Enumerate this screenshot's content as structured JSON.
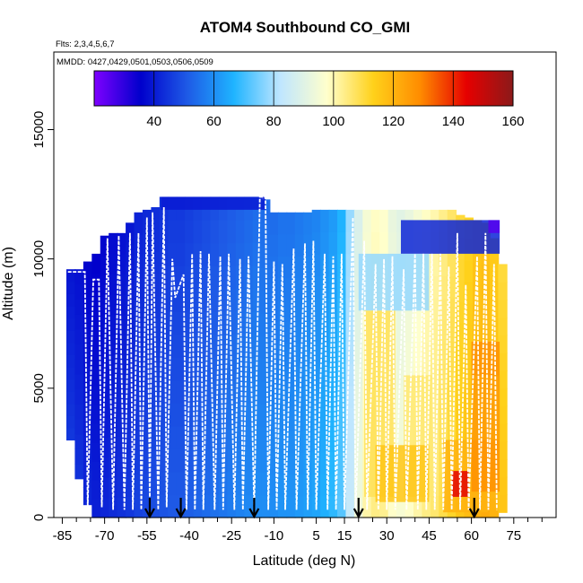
{
  "chart_data": {
    "type": "heatmap",
    "title": "ATOM4 Southbound CO_GMI",
    "subtitle_flights": "Flts: 2,3,4,5,6,7",
    "subtitle_dates": "MMDD: 0427,0429,0501,0503,0506,0509",
    "xlabel": "Latitude (deg N)",
    "ylabel": "Altitude (m)",
    "xlim": [
      -88,
      90
    ],
    "ylim": [
      0,
      18000
    ],
    "x_ticks": [
      -85,
      -70,
      -55,
      -40,
      -25,
      -10,
      5,
      15,
      30,
      45,
      60,
      75
    ],
    "x_minor_ticks": [
      -80,
      -75,
      -65,
      -60,
      -50,
      -45,
      -35,
      -30,
      -20,
      -15,
      0,
      10,
      20,
      25,
      35,
      40,
      50,
      55,
      65,
      70,
      80,
      85
    ],
    "y_ticks": [
      0,
      5000,
      10000,
      15000
    ],
    "colorbar": {
      "min": 20,
      "max": 160,
      "ticks": [
        40,
        60,
        80,
        100,
        120,
        140,
        160
      ],
      "colors": [
        "#7f00ff",
        "#0000cc",
        "#1e5ae6",
        "#1fb4ff",
        "#bfe6ff",
        "#ffffcc",
        "#ffd11a",
        "#ff8c00",
        "#e60000",
        "#8b1a1a"
      ]
    },
    "grid": false,
    "arrow_latitudes": [
      -54,
      -43,
      -17,
      20,
      61
    ],
    "curtain_columns": [
      {
        "lat": -82,
        "bottom": 3000,
        "top": 9600,
        "co": 45
      },
      {
        "lat": -79,
        "bottom": 1500,
        "top": 9600,
        "co": 44
      },
      {
        "lat": -76,
        "bottom": 500,
        "top": 9900,
        "co": 42
      },
      {
        "lat": -73,
        "bottom": 0,
        "top": 10200,
        "co": 41
      },
      {
        "lat": -70,
        "bottom": 0,
        "top": 10900,
        "co": 42
      },
      {
        "lat": -67,
        "bottom": 0,
        "top": 11000,
        "co": 43
      },
      {
        "lat": -64,
        "bottom": 0,
        "top": 11000,
        "co": 44
      },
      {
        "lat": -61,
        "bottom": 0,
        "top": 11400,
        "co": 45
      },
      {
        "lat": -58,
        "bottom": 0,
        "top": 11800,
        "co": 47
      },
      {
        "lat": -55,
        "bottom": 0,
        "top": 11900,
        "co": 48
      },
      {
        "lat": -52,
        "bottom": 0,
        "top": 12000,
        "co": 49
      },
      {
        "lat": -49,
        "bottom": 0,
        "top": 12400,
        "co": 50
      },
      {
        "lat": -46,
        "bottom": 0,
        "top": 12400,
        "co": 51
      },
      {
        "lat": -43,
        "bottom": 0,
        "top": 12400,
        "co": 51
      },
      {
        "lat": -40,
        "bottom": 0,
        "top": 12400,
        "co": 52
      },
      {
        "lat": -37,
        "bottom": 0,
        "top": 12400,
        "co": 53
      },
      {
        "lat": -34,
        "bottom": 0,
        "top": 12400,
        "co": 54
      },
      {
        "lat": -31,
        "bottom": 0,
        "top": 12400,
        "co": 55
      },
      {
        "lat": -28,
        "bottom": 0,
        "top": 12400,
        "co": 56
      },
      {
        "lat": -25,
        "bottom": 0,
        "top": 12400,
        "co": 57
      },
      {
        "lat": -22,
        "bottom": 0,
        "top": 12400,
        "co": 58
      },
      {
        "lat": -19,
        "bottom": 0,
        "top": 12400,
        "co": 59
      },
      {
        "lat": -16,
        "bottom": 0,
        "top": 12400,
        "co": 60
      },
      {
        "lat": -13,
        "bottom": 0,
        "top": 12300,
        "co": 60
      },
      {
        "lat": -10,
        "bottom": 0,
        "top": 11800,
        "co": 60
      },
      {
        "lat": -7,
        "bottom": 0,
        "top": 11800,
        "co": 61
      },
      {
        "lat": -4,
        "bottom": 0,
        "top": 11800,
        "co": 61
      },
      {
        "lat": -1,
        "bottom": 0,
        "top": 11800,
        "co": 62
      },
      {
        "lat": 2,
        "bottom": 0,
        "top": 11800,
        "co": 63
      },
      {
        "lat": 5,
        "bottom": 0,
        "top": 11900,
        "co": 64
      },
      {
        "lat": 8,
        "bottom": 0,
        "top": 11900,
        "co": 66
      },
      {
        "lat": 11,
        "bottom": 0,
        "top": 11900,
        "co": 68
      },
      {
        "lat": 14,
        "bottom": 0,
        "top": 11900,
        "co": 72
      },
      {
        "lat": 17,
        "bottom": 0,
        "top": 11900,
        "co": 78
      },
      {
        "lat": 20,
        "bottom": 0,
        "top": 11900,
        "co": 88
      },
      {
        "lat": 23,
        "bottom": 0,
        "top": 11900,
        "co": 95
      },
      {
        "lat": 26,
        "bottom": 0,
        "top": 11900,
        "co": 98
      },
      {
        "lat": 29,
        "bottom": 0,
        "top": 11900,
        "co": 97
      },
      {
        "lat": 32,
        "bottom": 0,
        "top": 11900,
        "co": 92
      },
      {
        "lat": 35,
        "bottom": 0,
        "top": 11900,
        "co": 90
      },
      {
        "lat": 38,
        "bottom": 0,
        "top": 11900,
        "co": 92
      },
      {
        "lat": 41,
        "bottom": 0,
        "top": 11900,
        "co": 95
      },
      {
        "lat": 44,
        "bottom": 0,
        "top": 11900,
        "co": 98
      },
      {
        "lat": 47,
        "bottom": 0,
        "top": 11900,
        "co": 100
      },
      {
        "lat": 50,
        "bottom": 0,
        "top": 11900,
        "co": 103
      },
      {
        "lat": 53,
        "bottom": 0,
        "top": 11900,
        "co": 106
      },
      {
        "lat": 56,
        "bottom": 0,
        "top": 11700,
        "co": 110
      },
      {
        "lat": 59,
        "bottom": 0,
        "top": 11600,
        "co": 112
      },
      {
        "lat": 62,
        "bottom": 0,
        "top": 11500,
        "co": 115
      },
      {
        "lat": 65,
        "bottom": 0,
        "top": 11400,
        "co": 116
      },
      {
        "lat": 68,
        "bottom": 0,
        "top": 10800,
        "co": 114
      },
      {
        "lat": 71,
        "bottom": 200,
        "top": 9800,
        "co": 110
      }
    ],
    "overlay_patches": [
      {
        "lat0": -50,
        "lat1": -13,
        "alt0": 11900,
        "alt1": 12400,
        "co": 40
      },
      {
        "lat0": 35,
        "lat1": 70,
        "alt0": 10200,
        "alt1": 11500,
        "co": 42
      },
      {
        "lat0": 20,
        "lat1": 45,
        "alt0": 8000,
        "alt1": 10200,
        "co": 78
      },
      {
        "lat0": 22,
        "lat1": 33,
        "alt0": 800,
        "alt1": 8000,
        "co": 108
      },
      {
        "lat0": 36,
        "lat1": 46,
        "alt0": 800,
        "alt1": 5500,
        "co": 106
      },
      {
        "lat0": 26,
        "lat1": 45,
        "alt0": 600,
        "alt1": 2800,
        "co": 116
      },
      {
        "lat0": 50,
        "lat1": 66,
        "alt0": 200,
        "alt1": 3000,
        "co": 120
      },
      {
        "lat0": 53,
        "lat1": 59,
        "alt0": 800,
        "alt1": 1800,
        "co": 145
      },
      {
        "lat0": 60,
        "lat1": 70,
        "alt0": 1000,
        "alt1": 6800,
        "co": 128
      },
      {
        "lat0": 60,
        "lat1": 70,
        "alt0": 3000,
        "alt1": 5500,
        "co": 124
      },
      {
        "lat0": 66,
        "lat1": 70,
        "alt0": 11000,
        "alt1": 11500,
        "co": 25
      }
    ],
    "flight_track": [
      [
        -83,
        9500
      ],
      [
        -77,
        9500
      ],
      [
        -76,
        400
      ],
      [
        -74,
        9200
      ],
      [
        -72,
        9200
      ],
      [
        -71,
        400
      ],
      [
        -69,
        10800
      ],
      [
        -67,
        300
      ],
      [
        -65,
        10900
      ],
      [
        -63,
        300
      ],
      [
        -61,
        11000
      ],
      [
        -60,
        300
      ],
      [
        -58,
        11000
      ],
      [
        -57,
        300
      ],
      [
        -55,
        11600
      ],
      [
        -54,
        500
      ],
      [
        -53,
        11800
      ],
      [
        -51,
        300
      ],
      [
        -49,
        12000
      ],
      [
        -48,
        400
      ],
      [
        -46,
        10000
      ],
      [
        -45,
        8500
      ],
      [
        -42,
        9400
      ],
      [
        -41,
        300
      ],
      [
        -39,
        10200
      ],
      [
        -38,
        300
      ],
      [
        -36,
        10300
      ],
      [
        -35,
        300
      ],
      [
        -33,
        10200
      ],
      [
        -31,
        300
      ],
      [
        -29,
        10100
      ],
      [
        -28,
        300
      ],
      [
        -26,
        10200
      ],
      [
        -24,
        300
      ],
      [
        -22,
        10000
      ],
      [
        -21,
        300
      ],
      [
        -19,
        10100
      ],
      [
        -17,
        300
      ],
      [
        -15,
        12400
      ],
      [
        -13,
        12400
      ],
      [
        -12,
        300
      ],
      [
        -10,
        9900
      ],
      [
        -9,
        300
      ],
      [
        -7,
        9800
      ],
      [
        -6,
        300
      ],
      [
        -3,
        10400
      ],
      [
        -2,
        300
      ],
      [
        1,
        10600
      ],
      [
        2,
        300
      ],
      [
        4,
        10700
      ],
      [
        5,
        300
      ],
      [
        8,
        10200
      ],
      [
        9,
        300
      ],
      [
        11,
        10100
      ],
      [
        12,
        300
      ],
      [
        14,
        10200
      ],
      [
        15,
        300
      ],
      [
        18,
        11600
      ],
      [
        19,
        300
      ],
      [
        22,
        10700
      ],
      [
        23,
        300
      ],
      [
        26,
        9800
      ],
      [
        27,
        300
      ],
      [
        29,
        10000
      ],
      [
        30,
        300
      ],
      [
        32,
        10100
      ],
      [
        33,
        300
      ],
      [
        36,
        9600
      ],
      [
        37,
        300
      ],
      [
        40,
        10200
      ],
      [
        41,
        300
      ],
      [
        43,
        10200
      ],
      [
        44,
        300
      ],
      [
        46,
        10200
      ],
      [
        47,
        300
      ],
      [
        49,
        10200
      ],
      [
        50,
        300
      ],
      [
        52,
        9700
      ],
      [
        53,
        300
      ],
      [
        55,
        11000
      ],
      [
        56,
        300
      ],
      [
        58,
        9000
      ],
      [
        59,
        300
      ],
      [
        62,
        10100
      ],
      [
        63,
        300
      ],
      [
        65,
        11000
      ],
      [
        66,
        300
      ],
      [
        68,
        9800
      ],
      [
        69,
        300
      ]
    ]
  }
}
